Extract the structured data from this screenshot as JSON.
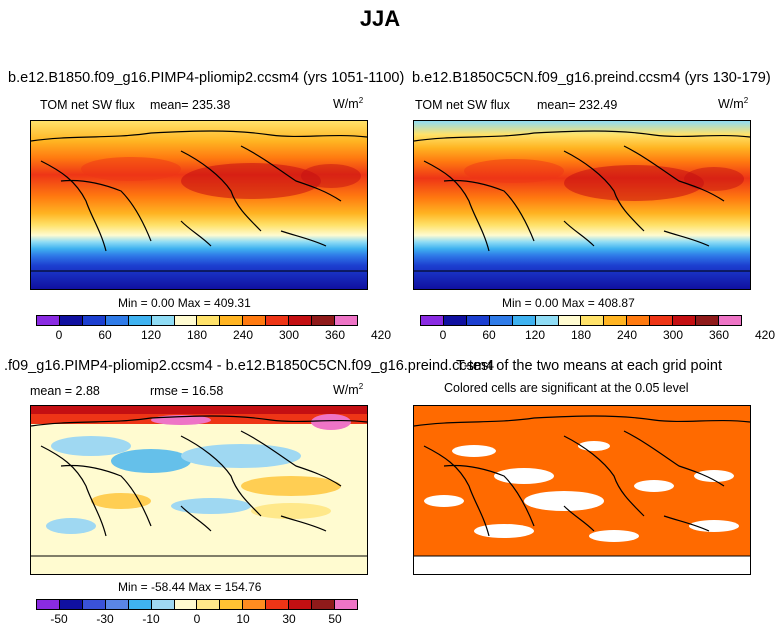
{
  "figure": {
    "title": "JJA"
  },
  "panels": [
    {
      "id": "a",
      "title": "b.e12.B1850.f09_g16.PIMP4-pliomip2.ccsm4 (yrs 1051-1100)",
      "variable": "TOM net SW flux",
      "mean_label": "mean= 235.38",
      "units": "W/m",
      "units_sup": "2",
      "minmax": "Min =   0.00 Max = 409.31",
      "colorbar": {
        "colors": [
          "#8a2be2",
          "#1010a0",
          "#1c3fd0",
          "#2f7be8",
          "#3fb2f0",
          "#8fdcf5",
          "#fffbd0",
          "#ffe26a",
          "#ffb422",
          "#ff7a10",
          "#ee3516",
          "#c40f12",
          "#8f1a1a",
          "#ee74c6"
        ],
        "ticks": [
          "0",
          "60",
          "120",
          "180",
          "240",
          "300",
          "360",
          "420"
        ]
      }
    },
    {
      "id": "b",
      "title": "b.e12.B1850C5CN.f09_g16.preind.ccsm4 (yrs 130-179)",
      "variable": "TOM net SW flux",
      "mean_label": "mean= 232.49",
      "units": "W/m",
      "units_sup": "2",
      "minmax": "Min =   0.00 Max = 408.87",
      "colorbar": {
        "colors": [
          "#8a2be2",
          "#1010a0",
          "#1c3fd0",
          "#2f7be8",
          "#3fb2f0",
          "#8fdcf5",
          "#fffbd0",
          "#ffe26a",
          "#ffb422",
          "#ff7a10",
          "#ee3516",
          "#c40f12",
          "#8f1a1a",
          "#ee74c6"
        ],
        "ticks": [
          "0",
          "60",
          "120",
          "180",
          "240",
          "300",
          "360",
          "420"
        ]
      }
    },
    {
      "id": "c",
      "title": ".f09_g16.PIMP4-pliomip2.ccsm4 - b.e12.B1850C5CN.f09_g16.preind.ccsm4",
      "mean_label": "mean =    2.88",
      "rmse_label": "rmse =   16.58",
      "units": "W/m",
      "units_sup": "2",
      "minmax": "Min = -58.44 Max = 154.76",
      "colorbar": {
        "colors": [
          "#8a2be2",
          "#1010a0",
          "#3a52d8",
          "#5a86e6",
          "#3fb2f0",
          "#9fd8f2",
          "#fffbd0",
          "#ffe88a",
          "#ffc333",
          "#ff8c20",
          "#ee3516",
          "#c40f12",
          "#8f1a1a",
          "#ee74c6"
        ],
        "ticks": [
          "-50",
          "-30",
          "-10",
          "0",
          "10",
          "30",
          "50"
        ]
      }
    },
    {
      "id": "d",
      "title": "T-test of the two means at each grid point",
      "subtitle": "Colored cells are significant at the 0.05 level",
      "fill_color": "#ff6a00"
    }
  ]
}
